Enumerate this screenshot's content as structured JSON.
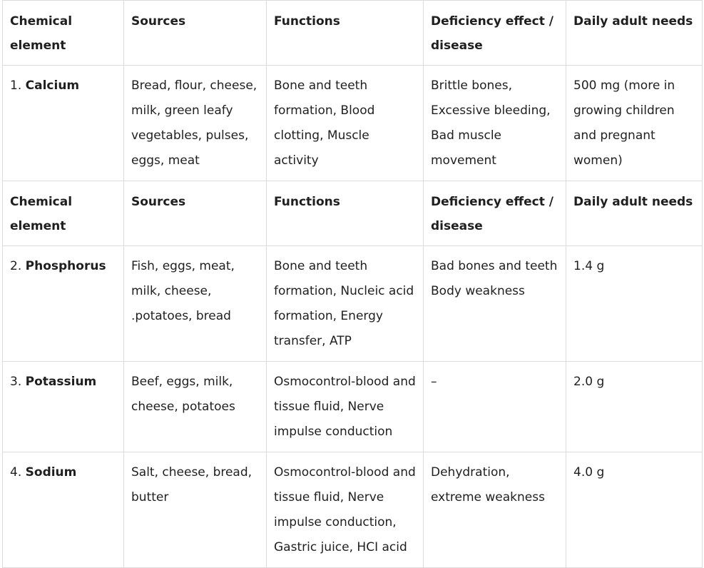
{
  "headers": [
    "Chemical element",
    "Sources",
    "Functions",
    "Deficiency effect / disease",
    "Daily adult needs"
  ],
  "rows": [
    {
      "num": "1.",
      "element": "Calcium",
      "sources": "Bread, flour, cheese, milk, green leafy vegetables, pulses, eggs, meat",
      "functions": "Bone and teeth formation, Blood clotting, Muscle activity",
      "deficiency": "Brittle bones, Excessive bleeding, Bad muscle movement",
      "needs": "500 mg (more in growing children and pregnant women)"
    },
    {
      "num": "2.",
      "element": "Phosphorus",
      "sources": "Fish, eggs, meat, milk, cheese, .potatoes, bread",
      "functions": "Bone and teeth formation, Nucleic acid formation, Energy transfer, ATP",
      "deficiency": "Bad bones and teeth Body weakness",
      "needs": "1.4 g"
    },
    {
      "num": "3.",
      "element": "Potassium",
      "sources": "Beef, eggs, milk, cheese, potatoes",
      "functions": "Osmocontrol-blood and tissue fluid, Nerve impulse conduction",
      "deficiency": "–",
      "needs": "2.0 g"
    },
    {
      "num": "4.",
      "element": "Sodium",
      "sources": "Salt, cheese, bread, butter",
      "functions": "Osmocontrol-blood and tissue fluid, Nerve impulse conduction, Gastric juice, HCI acid",
      "deficiency": "Dehydration, extreme weakness",
      "needs": "4.0 g"
    }
  ]
}
